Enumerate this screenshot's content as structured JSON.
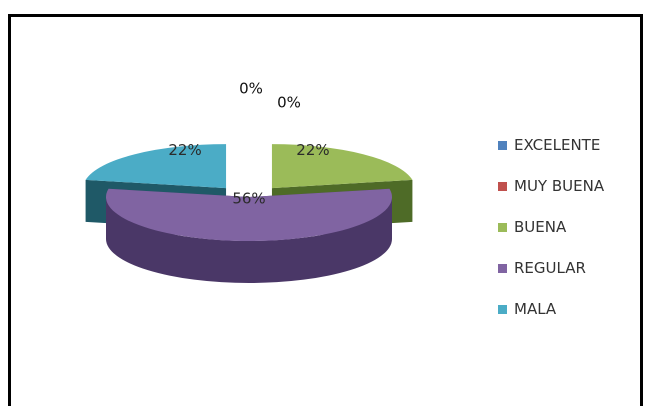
{
  "chart_data": {
    "type": "pie",
    "style": "3d-exploded",
    "title": "",
    "categories": [
      "EXCELENTE",
      "MUY BUENA",
      "BUENA",
      "REGULAR",
      "MALA"
    ],
    "values": [
      0,
      0,
      22,
      56,
      22
    ],
    "data_labels": [
      "0%",
      "0%",
      "22%",
      "56%",
      "22%"
    ],
    "colors": [
      "#4f81bd",
      "#c0504d",
      "#9bbb59",
      "#8064a2",
      "#4bacc6"
    ],
    "side_colors": [
      "#2e4d75",
      "#7a3230",
      "#4e6b27",
      "#4a3767",
      "#1f5967"
    ],
    "legend_position": "right"
  }
}
